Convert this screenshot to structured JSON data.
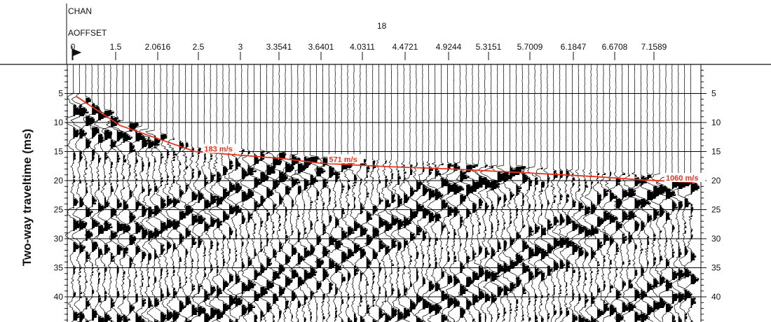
{
  "header": {
    "chan_label": "CHAN",
    "offset_label": "AOFFSET",
    "chan_value": "18"
  },
  "chart_data": {
    "type": "line",
    "title": "",
    "xlabel": "",
    "ylabel": "Two-way traveltime (ms)",
    "offset_ticks": [
      "0",
      "1.5",
      "2.0616",
      "2.5",
      "3",
      "3.3541",
      "3.6401",
      "4.0311",
      "4.4721",
      "4.9244",
      "5.3151",
      "5.7009",
      "6.1847",
      "6.6708",
      "7.1589"
    ],
    "y_ticks": [
      5,
      10,
      15,
      20,
      25,
      30,
      35,
      40
    ],
    "ylim": [
      0,
      42
    ],
    "y_inverted": true,
    "grid": true,
    "series": [
      {
        "line_color": "#e8321e",
        "x_trace": [
          1,
          8,
          20,
          34,
          40,
          51,
          61,
          72,
          84,
          92,
          100
        ],
        "y_ms": [
          5.5,
          10.5,
          15.0,
          16.2,
          17.0,
          17.6,
          18.0,
          18.6,
          19.3,
          19.9,
          20.3
        ]
      }
    ],
    "annotations": [
      {
        "text": "183 m/s",
        "x_trace": 21.5,
        "y_ms": 15.0
      },
      {
        "text": "571 m/s",
        "x_trace": 41.5,
        "y_ms": 16.8
      },
      {
        "text": "1060 m/s",
        "x_trace": 95.5,
        "y_ms": 20.0
      }
    ]
  }
}
